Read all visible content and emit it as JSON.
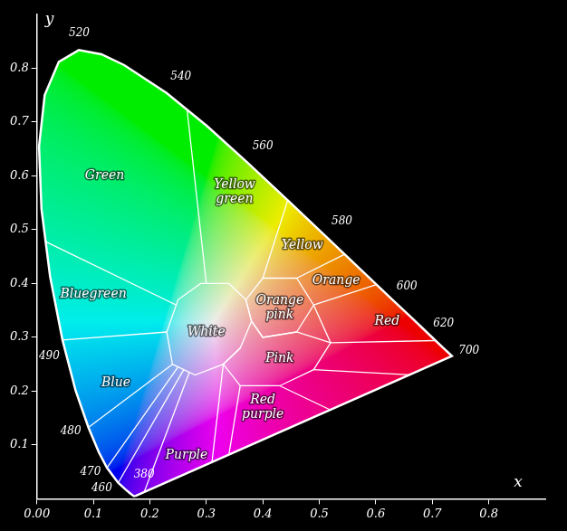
{
  "chart_data": {
    "type": "line",
    "x_label": "x",
    "y_label": "y",
    "xlim": [
      0,
      0.9
    ],
    "ylim": [
      0,
      0.9
    ],
    "xticks": [
      {
        "value": 0,
        "label": "0.00"
      },
      0.1,
      0.2,
      0.3,
      0.4,
      0.5,
      0.6,
      0.7,
      0.8
    ],
    "yticks": [
      0.1,
      0.2,
      0.3,
      0.4,
      0.5,
      0.6,
      0.7,
      0.8
    ],
    "grid": false,
    "series": [
      {
        "color": "#ffffff",
        "x": [
          0.1741,
          0.1714,
          0.1644,
          0.1566,
          0.144,
          0.1241,
          0.1096,
          0.0913,
          0.0687,
          0.0454,
          0.0235,
          0.0082,
          0.0039,
          0.0139,
          0.0389,
          0.0743,
          0.1142,
          0.1547,
          0.2296,
          0.3016,
          0.3731,
          0.4441,
          0.5125,
          0.5752,
          0.627,
          0.6658,
          0.6915,
          0.719,
          0.73,
          0.7347,
          0.1741
        ],
        "values": [
          0.005,
          0.0051,
          0.0109,
          0.0177,
          0.0297,
          0.0578,
          0.0868,
          0.1327,
          0.2007,
          0.295,
          0.4127,
          0.5384,
          0.6548,
          0.7502,
          0.812,
          0.8338,
          0.8262,
          0.8059,
          0.7543,
          0.6923,
          0.6245,
          0.5547,
          0.4866,
          0.4242,
          0.3725,
          0.334,
          0.3083,
          0.2809,
          0.27,
          0.2653,
          0.005
        ]
      },
      {
        "color": "#ffffff",
        "x": [
          0.24,
          0.23,
          0.25,
          0.29,
          0.34,
          0.37,
          0.38,
          0.36,
          0.33,
          0.28,
          0.24
        ],
        "values": [
          0.25,
          0.31,
          0.37,
          0.4,
          0.4,
          0.37,
          0.33,
          0.28,
          0.25,
          0.23,
          0.25
        ]
      },
      {
        "color": "#ffffff",
        "x": [
          0.37,
          0.4,
          0.46,
          0.49,
          0.46,
          0.4,
          0.38,
          0.37
        ],
        "values": [
          0.37,
          0.41,
          0.41,
          0.36,
          0.31,
          0.3,
          0.33,
          0.37
        ]
      },
      {
        "color": "#ffffff",
        "x": [
          0.38,
          0.4,
          0.46,
          0.52,
          0.49,
          0.43,
          0.36,
          0.33,
          0.36
        ],
        "values": [
          0.33,
          0.3,
          0.31,
          0.29,
          0.24,
          0.21,
          0.21,
          0.25,
          0.28
        ]
      },
      {
        "color": "#ffffff",
        "x": [
          0.3,
          0.2658
        ],
        "values": [
          0.4,
          0.7243
        ]
      },
      {
        "color": "#ffffff",
        "x": [
          0.4,
          0.4441
        ],
        "values": [
          0.41,
          0.5547
        ]
      },
      {
        "color": "#ffffff",
        "x": [
          0.46,
          0.5448
        ],
        "values": [
          0.41,
          0.4544
        ]
      },
      {
        "color": "#ffffff",
        "x": [
          0.49,
          0.601
        ],
        "values": [
          0.36,
          0.398
        ]
      },
      {
        "color": "#ffffff",
        "x": [
          0.49,
          0.52
        ],
        "values": [
          0.36,
          0.29
        ]
      },
      {
        "color": "#ffffff",
        "x": [
          0.52,
          0.705
        ],
        "values": [
          0.29,
          0.294
        ]
      },
      {
        "color": "#ffffff",
        "x": [
          0.49,
          0.66
        ],
        "values": [
          0.24,
          0.2303
        ]
      },
      {
        "color": "#ffffff",
        "x": [
          0.43,
          0.52
        ],
        "values": [
          0.21,
          0.165
        ]
      },
      {
        "color": "#ffffff",
        "x": [
          0.36,
          0.34
        ],
        "values": [
          0.21,
          0.082
        ]
      },
      {
        "color": "#ffffff",
        "x": [
          0.33,
          0.31
        ],
        "values": [
          0.25,
          0.068
        ]
      },
      {
        "color": "#ffffff",
        "x": [
          0.27,
          0.19
        ],
        "values": [
          0.235,
          0.0124
        ]
      },
      {
        "color": "#ffffff",
        "x": [
          0.26,
          0.144
        ],
        "values": [
          0.24,
          0.0297
        ]
      },
      {
        "color": "#ffffff",
        "x": [
          0.25,
          0.1241
        ],
        "values": [
          0.245,
          0.0578
        ]
      },
      {
        "color": "#ffffff",
        "x": [
          0.24,
          0.0913
        ],
        "values": [
          0.25,
          0.1327
        ]
      },
      {
        "color": "#ffffff",
        "x": [
          0.23,
          0.0454
        ],
        "values": [
          0.31,
          0.295
        ]
      },
      {
        "color": "#ffffff",
        "x": [
          0.247,
          0.0156
        ],
        "values": [
          0.36,
          0.478
        ]
      }
    ],
    "wavelength_labels": [
      {
        "text": "520",
        "x": 0.075,
        "y": 0.865
      },
      {
        "text": "540",
        "x": 0.255,
        "y": 0.785
      },
      {
        "text": "560",
        "x": 0.4,
        "y": 0.655
      },
      {
        "text": "580",
        "x": 0.54,
        "y": 0.515
      },
      {
        "text": "600",
        "x": 0.655,
        "y": 0.395
      },
      {
        "text": "620",
        "x": 0.72,
        "y": 0.325
      },
      {
        "text": "700",
        "x": 0.765,
        "y": 0.275
      },
      {
        "text": "490",
        "x": 0.022,
        "y": 0.265
      },
      {
        "text": "480",
        "x": 0.06,
        "y": 0.125
      },
      {
        "text": "470",
        "x": 0.095,
        "y": 0.05
      },
      {
        "text": "460",
        "x": 0.115,
        "y": 0.02
      },
      {
        "text": "380",
        "x": 0.19,
        "y": 0.045
      }
    ],
    "region_labels": [
      {
        "text": "Green",
        "x": 0.12,
        "y": 0.6
      },
      {
        "text": "Yellow green",
        "x": 0.35,
        "y": 0.57
      },
      {
        "text": "Yellow",
        "x": 0.47,
        "y": 0.47
      },
      {
        "text": "Orange",
        "x": 0.53,
        "y": 0.405
      },
      {
        "text": "Orange pink",
        "x": 0.43,
        "y": 0.355
      },
      {
        "text": "Bluegreen",
        "x": 0.1,
        "y": 0.38
      },
      {
        "text": "White",
        "x": 0.3,
        "y": 0.31
      },
      {
        "text": "Pink",
        "x": 0.43,
        "y": 0.26
      },
      {
        "text": "Red",
        "x": 0.62,
        "y": 0.33
      },
      {
        "text": "Blue",
        "x": 0.14,
        "y": 0.215
      },
      {
        "text": "Purple",
        "x": 0.265,
        "y": 0.08
      },
      {
        "text": "Red purple",
        "x": 0.4,
        "y": 0.17
      }
    ]
  }
}
